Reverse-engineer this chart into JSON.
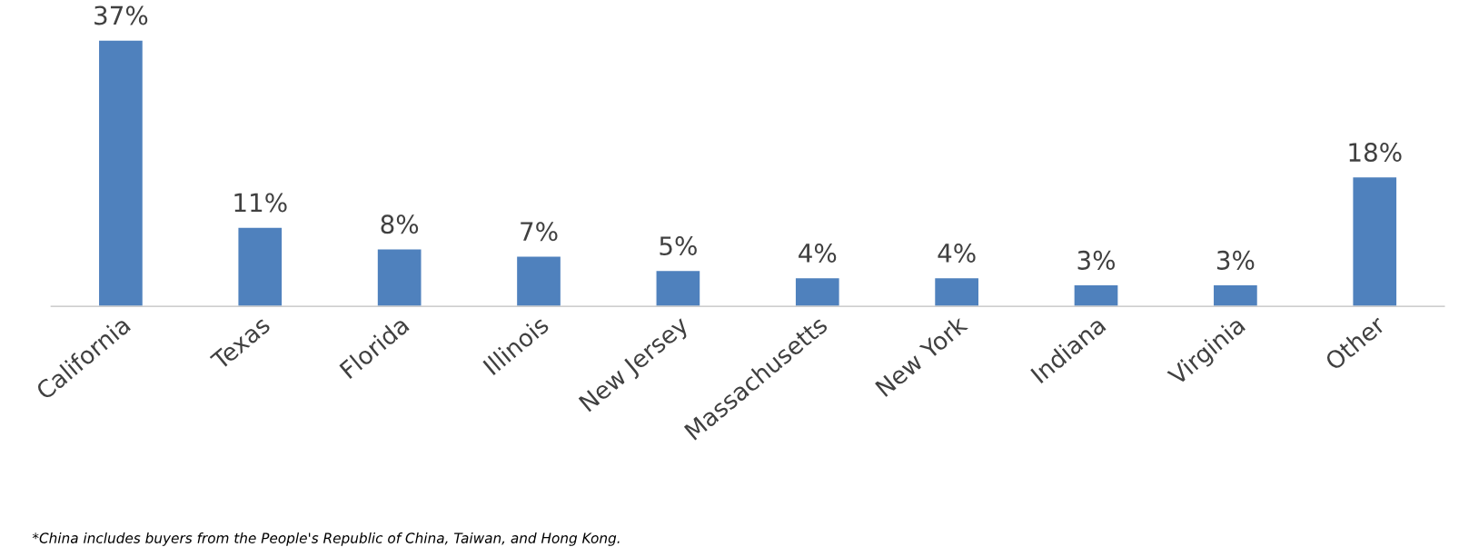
{
  "chart_data": {
    "type": "bar",
    "categories": [
      "California",
      "Texas",
      "Florida",
      "Illinois",
      "New Jersey",
      "Massachusetts",
      "New York",
      "Indiana",
      "Virginia",
      "Other"
    ],
    "values": [
      37,
      11,
      8,
      7,
      5,
      4,
      4,
      3,
      3,
      18
    ],
    "value_labels": [
      "37%",
      "11%",
      "8%",
      "7%",
      "5%",
      "4%",
      "4%",
      "3%",
      "3%",
      "18%"
    ],
    "color": "#4f81bd",
    "grid": false,
    "annotations": [
      "*China includes buyers from the People's Republic of China, Taiwan, and Hong Kong."
    ]
  }
}
